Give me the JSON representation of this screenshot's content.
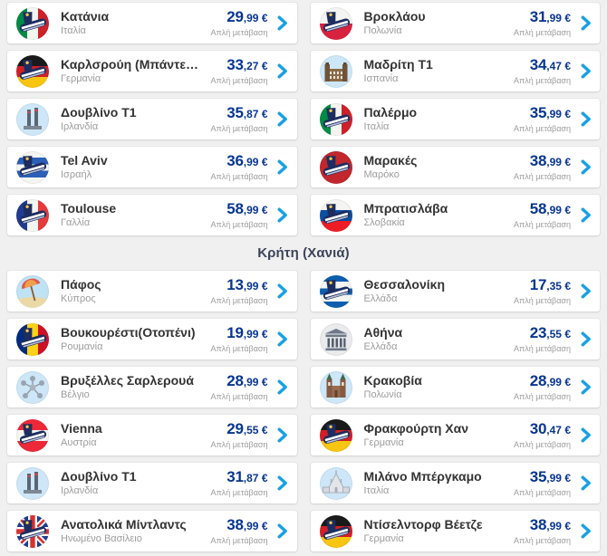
{
  "page": {
    "background": "#f0f0f1",
    "accent_navy": "#073590",
    "chevron_blue": "#19a0e3",
    "plane_navy": "#1d2d5f"
  },
  "labels": {
    "one_way": "Απλή μετάβαση"
  },
  "sections": [
    {
      "header": null,
      "cards": [
        {
          "city": "Κατάνια",
          "country": "Ιταλία",
          "price": "29,99 €",
          "icon": {
            "name": "italy-flag-plane-icon",
            "kind": "flag",
            "dir": "v",
            "stripes": [
              "#008c45",
              "#f4f5f0",
              "#cd212a"
            ]
          }
        },
        {
          "city": "Βροκλάου",
          "country": "Πολωνία",
          "price": "31,99 €",
          "icon": {
            "name": "poland-flag-plane-icon",
            "kind": "flag",
            "dir": "h",
            "stripes": [
              "#f4f5f0",
              "#d8213d"
            ]
          }
        },
        {
          "city": "Καρλσρούη (Μπάντεν-...",
          "country": "Γερμανία",
          "price": "33,27 €",
          "icon": {
            "name": "germany-flag-plane-icon",
            "kind": "flag",
            "dir": "h",
            "stripes": [
              "#1a1a1a",
              "#d21f26",
              "#f8c511"
            ]
          }
        },
        {
          "city": "Μαδρίτη T1",
          "country": "Ισπανία",
          "price": "34,47 €",
          "icon": {
            "name": "madrid-palace-icon",
            "kind": "landmark",
            "variant": "palace",
            "bg": "#cde7f8"
          }
        },
        {
          "city": "Δουβλίνο T1",
          "country": "Ιρλανδία",
          "price": "35,87 €",
          "icon": {
            "name": "dublin-chimneys-icon",
            "kind": "landmark",
            "variant": "dublin",
            "bg": "#cde7f8"
          }
        },
        {
          "city": "Παλέρμο",
          "country": "Ιταλία",
          "price": "35,99 €",
          "icon": {
            "name": "italy-flag-plane-icon",
            "kind": "flag",
            "dir": "v",
            "stripes": [
              "#008c45",
              "#f4f5f0",
              "#cd212a"
            ]
          }
        },
        {
          "city": "Tel Aviv",
          "country": "Ισραήλ",
          "price": "36,99 €",
          "icon": {
            "name": "israel-flag-plane-icon",
            "kind": "flag",
            "dir": "h",
            "stripes": [
              "#f4f5f0",
              "#2b5fb8",
              "#f4f5f0",
              "#2b5fb8",
              "#f4f5f0"
            ]
          }
        },
        {
          "city": "Μαρακές",
          "country": "Μαρόκο",
          "price": "38,99 €",
          "icon": {
            "name": "morocco-flag-plane-icon",
            "kind": "flag",
            "dir": "h",
            "stripes": [
              "#c1272d"
            ],
            "extra": "morocco-star"
          }
        },
        {
          "city": "Toulouse",
          "country": "Γαλλία",
          "price": "58,99 €",
          "icon": {
            "name": "france-flag-plane-icon",
            "kind": "flag",
            "dir": "v",
            "stripes": [
              "#1f3c92",
              "#f4f5f0",
              "#e43b3b"
            ]
          }
        },
        {
          "city": "Μπρατισλάβα",
          "country": "Σλοβακία",
          "price": "58,99 €",
          "icon": {
            "name": "slovakia-flag-plane-icon",
            "kind": "flag",
            "dir": "h",
            "stripes": [
              "#f4f5f0",
              "#0b4ea2",
              "#ee1c25"
            ]
          }
        }
      ]
    },
    {
      "header": "Κρήτη (Χανιά)",
      "cards": [
        {
          "city": "Πάφος",
          "country": "Κύπρος",
          "price": "13,99 €",
          "icon": {
            "name": "beach-umbrella-icon",
            "kind": "landmark",
            "variant": "beach",
            "bg": "#bfe3f5"
          }
        },
        {
          "city": "Θεσσαλονίκη",
          "country": "Ελλάδα",
          "price": "17,35 €",
          "icon": {
            "name": "greece-flag-plane-icon",
            "kind": "flag",
            "dir": "h",
            "stripes": [
              "#0d5eaf",
              "#f4f5f0",
              "#0d5eaf",
              "#f4f5f0",
              "#0d5eaf"
            ]
          }
        },
        {
          "city": "Βουκουρέστι(Οτοπένι)",
          "country": "Ρουμανία",
          "price": "19,99 €",
          "icon": {
            "name": "romania-flag-plane-icon",
            "kind": "flag",
            "dir": "v",
            "stripes": [
              "#002b7f",
              "#fcd116",
              "#ce1126"
            ]
          }
        },
        {
          "city": "Αθήνα",
          "country": "Ελλάδα",
          "price": "23,55 €",
          "icon": {
            "name": "parthenon-icon",
            "kind": "landmark",
            "variant": "parthenon",
            "bg": "#eaebed"
          }
        },
        {
          "city": "Βρυξέλλες Σαρλερουά",
          "country": "Βέλγιο",
          "price": "28,99 €",
          "icon": {
            "name": "atomium-icon",
            "kind": "landmark",
            "variant": "atomium",
            "bg": "#cde7f8"
          }
        },
        {
          "city": "Κρακοβία",
          "country": "Πολωνία",
          "price": "28,99 €",
          "icon": {
            "name": "krakow-cathedral-icon",
            "kind": "landmark",
            "variant": "cathedral",
            "bg": "#cde7f8"
          }
        },
        {
          "city": "Vienna",
          "country": "Αυστρία",
          "price": "29,55 €",
          "icon": {
            "name": "austria-flag-plane-icon",
            "kind": "flag",
            "dir": "h",
            "stripes": [
              "#ed2939",
              "#f4f5f0",
              "#ed2939"
            ]
          }
        },
        {
          "city": "Φρακφούρτη Χαν",
          "country": "Γερμανία",
          "price": "30,47 €",
          "icon": {
            "name": "germany-flag-plane-icon",
            "kind": "flag",
            "dir": "h",
            "stripes": [
              "#1a1a1a",
              "#d21f26",
              "#f8c511"
            ]
          }
        },
        {
          "city": "Δουβλίνο T1",
          "country": "Ιρλανδία",
          "price": "31,87 €",
          "icon": {
            "name": "dublin-chimneys-icon",
            "kind": "landmark",
            "variant": "dublin",
            "bg": "#cde7f8"
          }
        },
        {
          "city": "Μιλάνο Μπέργκαμο",
          "country": "Ιταλία",
          "price": "35,99 €",
          "icon": {
            "name": "milan-duomo-icon",
            "kind": "landmark",
            "variant": "duomo",
            "bg": "#cde7f8"
          }
        },
        {
          "city": "Ανατολικά Μίντλαντς",
          "country": "Ηνωμένο Βασίλειο",
          "price": "38,99 €",
          "icon": {
            "name": "uk-flag-plane-icon",
            "kind": "flag",
            "variant": "uk"
          }
        },
        {
          "city": "Ντίσελντορφ Βέετζε",
          "country": "Γερμανία",
          "price": "38,99 €",
          "icon": {
            "name": "germany-flag-plane-icon",
            "kind": "flag",
            "dir": "h",
            "stripes": [
              "#1a1a1a",
              "#d21f26",
              "#f8c511"
            ]
          }
        }
      ]
    }
  ]
}
